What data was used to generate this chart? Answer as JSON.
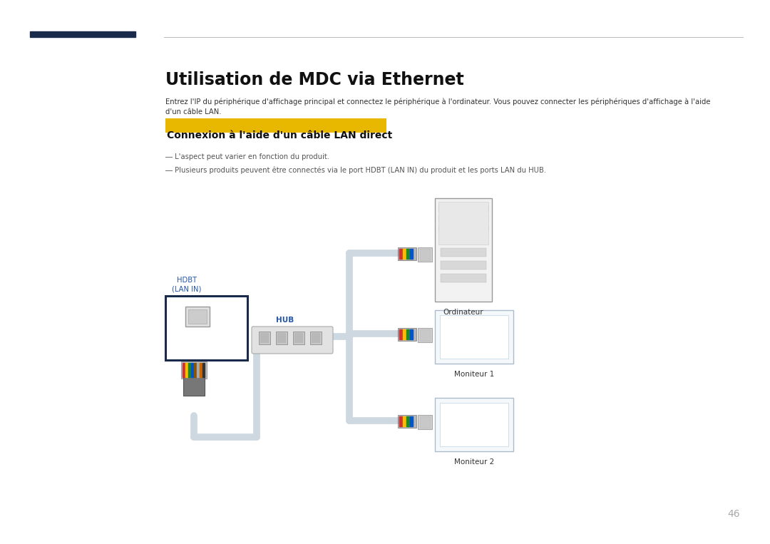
{
  "title": "Utilisation de MDC via Ethernet",
  "body_text": "Entrez l'IP du périphérique d'affichage principal et connectez le périphérique à l'ordinateur. Vous pouvez connecter les périphériques d'affichage à l'aide d'un câble LAN.",
  "subtitle": "Connexion à l'aide d'un câble LAN direct",
  "subtitle_bg": "#e8b800",
  "subtitle_color": "#111111",
  "note1": "― L'aspect peut varier en fonction du produit.",
  "note2": "― Plusieurs produits peuvent être connectés via le port HDBT (LAN IN) du produit et les ports LAN du HUB.",
  "label_hdbt": "HDBT\n(LAN IN)",
  "label_hub": "HUB",
  "label_ordinateur": "Ordinateur",
  "label_moniteur1": "Moniteur 1",
  "label_moniteur2": "Moniteur 2",
  "page_number": "46",
  "bg_color": "#ffffff",
  "dark_navy": "#1a2a4a",
  "cable_color": "#cdd8e0",
  "hub_label_color": "#2255aa",
  "hdbt_label_color": "#2255aa",
  "text_color": "#333333",
  "note_color": "#555555"
}
